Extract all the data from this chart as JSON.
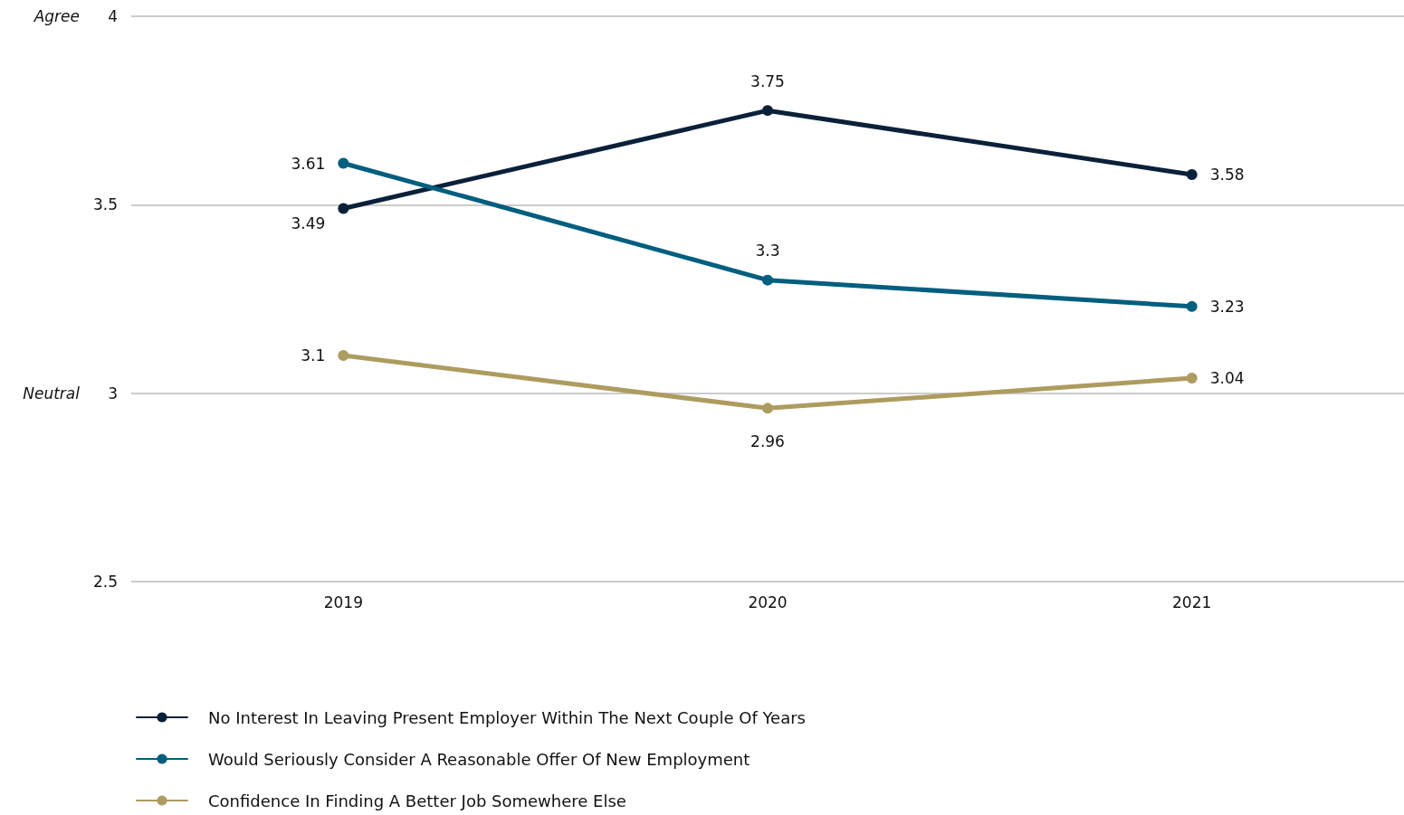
{
  "chart_data": {
    "type": "line",
    "categories": [
      "2019",
      "2020",
      "2021"
    ],
    "series": [
      {
        "name": "No Interest In Leaving Present Employer Within The Next Couple Of Years",
        "color": "#0b2039",
        "values": [
          3.49,
          3.75,
          3.58
        ]
      },
      {
        "name": "Would Seriously Consider A Reasonable Offer Of New Employment",
        "color": "#005e7f",
        "values": [
          3.61,
          3.3,
          3.23
        ]
      },
      {
        "name": "Confidence In Finding A Better Job Somewhere Else",
        "color": "#ae9b5f",
        "values": [
          3.1,
          2.96,
          3.04
        ]
      }
    ],
    "ylim": [
      2.5,
      4
    ],
    "yticks": [
      2.5,
      3,
      3.5,
      4
    ],
    "grid": "y",
    "legend": "bottom left",
    "marker": "circle",
    "line_style": "solid",
    "data_labels": true,
    "annotations": [
      "Agree",
      "Neutral"
    ]
  }
}
